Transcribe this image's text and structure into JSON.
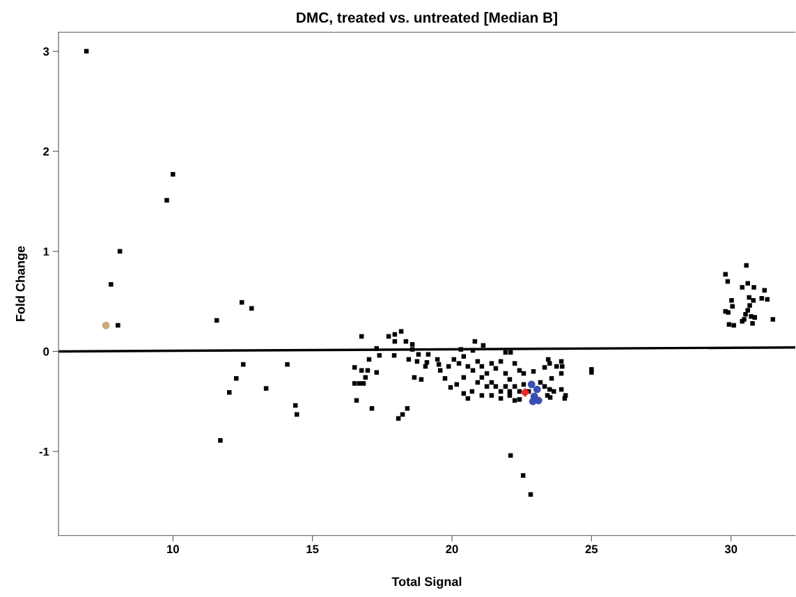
{
  "chart_data": {
    "type": "scatter",
    "title": "DMC, treated vs. untreated [Median B]",
    "xlabel": "Total Signal",
    "ylabel": "Fold Change",
    "xlim": [
      5.9,
      32.3
    ],
    "xticks": [
      10,
      15,
      20,
      25,
      30
    ],
    "ylim": [
      -1.84,
      3.19
    ],
    "yticks": [
      -1,
      0,
      1,
      2,
      3
    ],
    "grid": false,
    "legend": false,
    "series": [
      {
        "marker": "square",
        "color": "#000000",
        "x": [
          6.9,
          10.0,
          9.78,
          8.1,
          7.78,
          8.03,
          11.57,
          12.47,
          12.82,
          12.52,
          12.27,
          12.02,
          13.34,
          11.7,
          14.1,
          14.39,
          14.44,
          16.76,
          17.73,
          17.95,
          18.18,
          17.95,
          18.35,
          18.58,
          18.58,
          17.3,
          17.4,
          17.93,
          17.03,
          16.51,
          16.76,
          16.98,
          17.3,
          16.9,
          16.51,
          16.68,
          16.83,
          16.58,
          17.13,
          18.08,
          18.23,
          18.4,
          18.45,
          18.75,
          18.8,
          19.15,
          18.65,
          18.9,
          19.05,
          19.1,
          19.48,
          19.53,
          20.82,
          21.12,
          20.75,
          20.32,
          21.92,
          22.1,
          19.95,
          20.17,
          20.42,
          20.57,
          20.72,
          19.75,
          19.58,
          19.88,
          20.07,
          20.25,
          20.42,
          20.57,
          20.75,
          20.92,
          21.07,
          21.25,
          21.42,
          21.57,
          21.75,
          21.92,
          22.07,
          22.25,
          22.42,
          20.42,
          20.92,
          21.07,
          21.25,
          21.42,
          21.57,
          21.75,
          21.92,
          22.07,
          22.25,
          22.42,
          21.07,
          21.42,
          21.75,
          22.07,
          22.25,
          22.42,
          22.57,
          22.57,
          22.75,
          22.92,
          23.17,
          23.32,
          23.45,
          23.32,
          23.57,
          23.75,
          23.92,
          23.95,
          23.92,
          23.5,
          23.42,
          23.65,
          23.92,
          24.07,
          24.04,
          23.52,
          23.5,
          22.1,
          22.55,
          22.82,
          25.0,
          25.0,
          30.55,
          29.8,
          29.88,
          30.4,
          30.6,
          30.82,
          31.2,
          31.1,
          31.3,
          30.65,
          30.8,
          30.02,
          30.05,
          30.67,
          30.6,
          29.8,
          29.9,
          30.52,
          30.72,
          30.85,
          30.47,
          30.4,
          30.77,
          31.5,
          29.93,
          30.1
        ],
        "values": [
          3.0,
          1.77,
          1.51,
          1.0,
          0.67,
          0.26,
          0.31,
          0.49,
          0.43,
          -0.13,
          -0.27,
          -0.41,
          -0.37,
          -0.89,
          -0.13,
          -0.54,
          -0.63,
          0.15,
          0.15,
          0.17,
          0.2,
          0.1,
          0.1,
          0.07,
          0.02,
          0.03,
          -0.04,
          -0.04,
          -0.08,
          -0.16,
          -0.19,
          -0.19,
          -0.21,
          -0.26,
          -0.32,
          -0.32,
          -0.32,
          -0.49,
          -0.57,
          -0.67,
          -0.63,
          -0.57,
          -0.08,
          -0.1,
          -0.03,
          -0.03,
          -0.26,
          -0.28,
          -0.15,
          -0.11,
          -0.08,
          -0.13,
          0.1,
          0.06,
          0.01,
          0.02,
          -0.01,
          -0.01,
          -0.36,
          -0.33,
          -0.42,
          -0.47,
          -0.4,
          -0.27,
          -0.19,
          -0.15,
          -0.08,
          -0.12,
          -0.05,
          -0.15,
          -0.19,
          -0.1,
          -0.15,
          -0.22,
          -0.12,
          -0.17,
          -0.1,
          -0.22,
          -0.28,
          -0.12,
          -0.19,
          -0.26,
          -0.31,
          -0.26,
          -0.35,
          -0.31,
          -0.35,
          -0.4,
          -0.35,
          -0.4,
          -0.35,
          -0.4,
          -0.44,
          -0.44,
          -0.47,
          -0.44,
          -0.49,
          -0.48,
          -0.22,
          -0.33,
          -0.4,
          -0.2,
          -0.31,
          -0.35,
          -0.08,
          -0.16,
          -0.27,
          -0.15,
          -0.1,
          -0.15,
          -0.22,
          -0.38,
          -0.44,
          -0.4,
          -0.38,
          -0.44,
          -0.47,
          -0.46,
          -0.12,
          -1.04,
          -1.24,
          -1.43,
          -0.18,
          -0.21,
          0.86,
          0.77,
          0.7,
          0.64,
          0.68,
          0.64,
          0.61,
          0.53,
          0.52,
          0.54,
          0.51,
          0.51,
          0.45,
          0.46,
          0.41,
          0.4,
          0.39,
          0.37,
          0.35,
          0.34,
          0.32,
          0.3,
          0.28,
          0.32,
          0.27,
          0.26
        ]
      },
      {
        "marker": "circle",
        "color": "#c8aa80",
        "x": [
          7.6
        ],
        "values": [
          0.26
        ]
      },
      {
        "marker": "circle",
        "color": "#3a4fb0",
        "x": [
          22.85,
          23.05,
          22.95,
          22.9,
          23.1
        ],
        "values": [
          -0.33,
          -0.38,
          -0.45,
          -0.5,
          -0.49
        ]
      },
      {
        "marker": "diamond",
        "color": "#e8282a",
        "x": [
          22.62
        ],
        "values": [
          -0.41
        ]
      },
      {
        "type": "line",
        "line_style": "solid",
        "color": "#000000",
        "x": [
          5.9,
          32.3
        ],
        "values": [
          0.0,
          0.04
        ]
      }
    ]
  }
}
